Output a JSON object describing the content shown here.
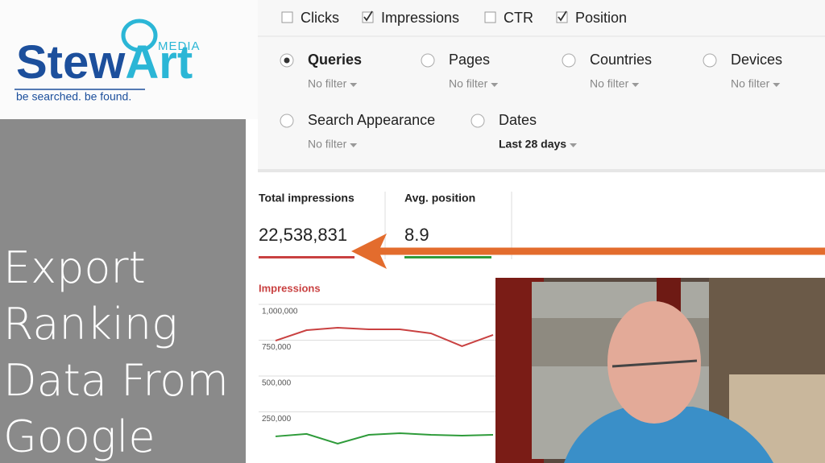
{
  "logo": {
    "part1": "Stew",
    "part2": "Art",
    "media": "MEDIA",
    "tagline": "be searched. be found."
  },
  "headline": [
    "Export",
    "Ranking",
    "Data From",
    "Google"
  ],
  "metrics_toggles": [
    {
      "label": "Clicks",
      "checked": false
    },
    {
      "label": "Impressions",
      "checked": true
    },
    {
      "label": "CTR",
      "checked": false
    },
    {
      "label": "Position",
      "checked": true
    }
  ],
  "filters": [
    {
      "label": "Queries",
      "filter": "No filter",
      "selected": true
    },
    {
      "label": "Pages",
      "filter": "No filter",
      "selected": false
    },
    {
      "label": "Countries",
      "filter": "No filter",
      "selected": false
    },
    {
      "label": "Devices",
      "filter": "No filter",
      "selected": false
    },
    {
      "label": "Search Appearance",
      "filter": "No filter",
      "selected": false
    },
    {
      "label": "Dates",
      "filter": "Last 28 days",
      "selected": false
    }
  ],
  "summary": [
    {
      "label": "Total impressions",
      "value": "22,538,831",
      "color": "#c94141"
    },
    {
      "label": "Avg. position",
      "value": "8.9",
      "color": "#2e9b3a"
    }
  ],
  "chart": {
    "title": "Impressions",
    "ylim": [
      0,
      1000000
    ],
    "yticks": [
      {
        "value": 1000000,
        "label": "1,000,000"
      },
      {
        "value": 750000,
        "label": "750,000"
      },
      {
        "value": 500000,
        "label": "500,000"
      },
      {
        "value": 250000,
        "label": "250,000"
      }
    ],
    "x": [
      1,
      2,
      3,
      4,
      5,
      6,
      7,
      8
    ],
    "series": [
      {
        "color": "#c94141",
        "values": [
          747000,
          820000,
          837000,
          826000,
          826000,
          798000,
          708000,
          787000
        ]
      },
      {
        "color": "#2e9b3a",
        "values": [
          79000,
          96000,
          28000,
          90000,
          101000,
          90000,
          84000,
          90000
        ]
      }
    ]
  }
}
